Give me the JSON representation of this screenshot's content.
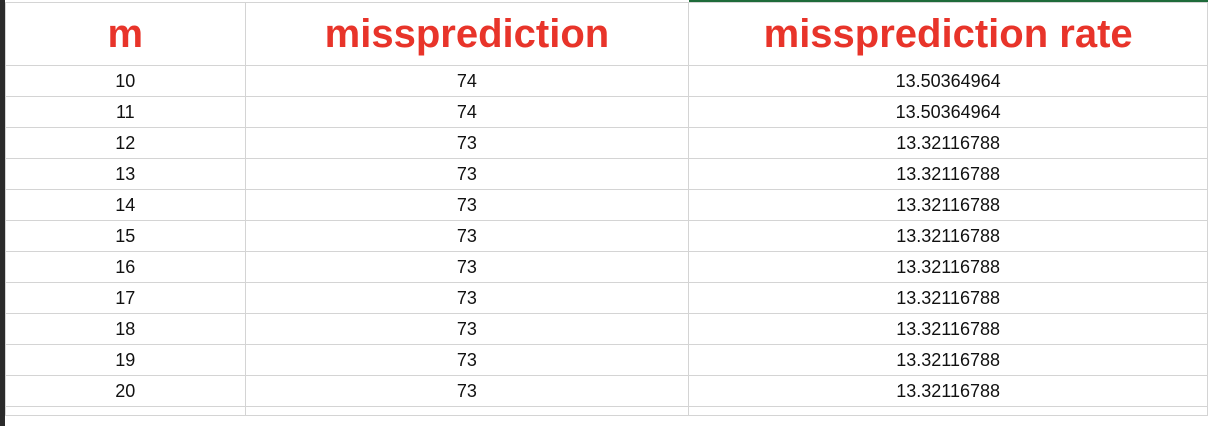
{
  "sheet": {
    "header_color": "#e8342a",
    "headers": [
      "m",
      "missprediction",
      "missprediction rate"
    ],
    "rows": [
      {
        "m": "10",
        "missprediction": "74",
        "rate": "13.50364964"
      },
      {
        "m": "11",
        "missprediction": "74",
        "rate": "13.50364964"
      },
      {
        "m": "12",
        "missprediction": "73",
        "rate": "13.32116788"
      },
      {
        "m": "13",
        "missprediction": "73",
        "rate": "13.32116788"
      },
      {
        "m": "14",
        "missprediction": "73",
        "rate": "13.32116788"
      },
      {
        "m": "15",
        "missprediction": "73",
        "rate": "13.32116788"
      },
      {
        "m": "16",
        "missprediction": "73",
        "rate": "13.32116788"
      },
      {
        "m": "17",
        "missprediction": "73",
        "rate": "13.32116788"
      },
      {
        "m": "18",
        "missprediction": "73",
        "rate": "13.32116788"
      },
      {
        "m": "19",
        "missprediction": "73",
        "rate": "13.32116788"
      },
      {
        "m": "20",
        "missprediction": "73",
        "rate": "13.32116788"
      }
    ]
  }
}
